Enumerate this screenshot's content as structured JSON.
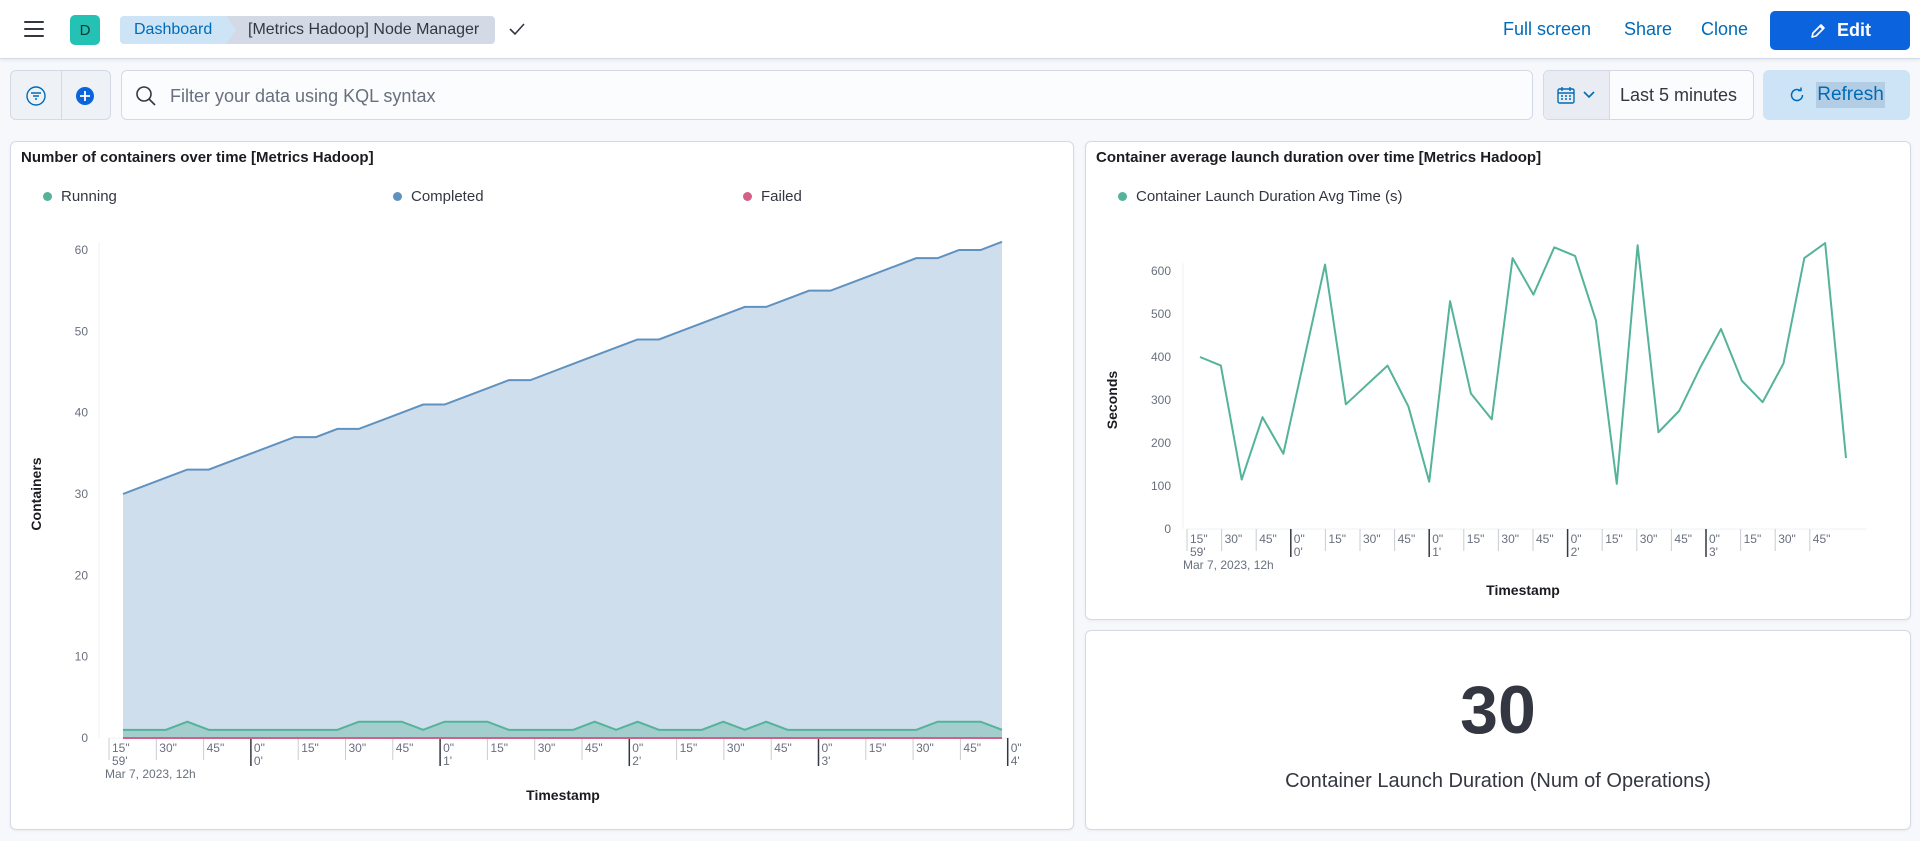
{
  "header": {
    "avatar_letter": "D",
    "breadcrumbs": [
      "Dashboard",
      "[Metrics Hadoop] Node Manager"
    ],
    "actions": {
      "fullscreen": "Full screen",
      "share": "Share",
      "clone": "Clone",
      "edit": "Edit"
    }
  },
  "query": {
    "placeholder": "Filter your data using KQL syntax",
    "time_range": "Last 5 minutes",
    "refresh": "Refresh"
  },
  "colors": {
    "running": "#54b399",
    "completed": "#6092c0",
    "failed": "#d36086",
    "accent": "#0b64dd"
  },
  "panels": {
    "containers": {
      "title": "Number of containers over time [Metrics Hadoop]"
    },
    "launch": {
      "title": "Container average launch duration over time [Metrics Hadoop]"
    },
    "metric": {
      "value": "30",
      "label": "Container Launch Duration (Num of Operations)"
    }
  },
  "chart_data": [
    {
      "type": "area",
      "ylabel": "Containers",
      "xlabel": "Timestamp",
      "ylim": [
        0,
        61
      ],
      "y_ticks": [
        0,
        10,
        20,
        30,
        40,
        50,
        60
      ],
      "x_tick_labels": [
        "15\"",
        "30\"",
        "45\"",
        "0\"",
        "15\"",
        "30\"",
        "45\"",
        "0\"",
        "15\"",
        "30\"",
        "45\"",
        "0\"",
        "15\"",
        "30\"",
        "45\"",
        "0\"",
        "15\"",
        "30\"",
        "45\"",
        "0\""
      ],
      "x_tick_sublabels": [
        "59'",
        "",
        "",
        "0'",
        "",
        "",
        "",
        "1'",
        "",
        "",
        "",
        "2'",
        "",
        "",
        "",
        "3'",
        "",
        "",
        "",
        "4'"
      ],
      "x_date_label": "Mar 7, 2023, 12h",
      "legend_position": "top",
      "series": [
        {
          "name": "Running",
          "color": "#54b399",
          "values": [
            1,
            1,
            1,
            2,
            1,
            1,
            1,
            1,
            1,
            1,
            1,
            2,
            2,
            2,
            1,
            2,
            2,
            2,
            1,
            1,
            1,
            1,
            2,
            1,
            2,
            1,
            1,
            1,
            2,
            1,
            2,
            1,
            1,
            1,
            1,
            1,
            1,
            1,
            2,
            2,
            2,
            1
          ]
        },
        {
          "name": "Completed",
          "color": "#6092c0",
          "values": [
            30,
            31,
            32,
            33,
            33,
            34,
            35,
            36,
            37,
            37,
            38,
            38,
            39,
            40,
            41,
            41,
            42,
            43,
            44,
            44,
            45,
            46,
            47,
            48,
            49,
            49,
            50,
            51,
            52,
            53,
            53,
            54,
            55,
            55,
            56,
            57,
            58,
            59,
            59,
            60,
            60,
            61
          ]
        },
        {
          "name": "Failed",
          "color": "#d36086",
          "values": [
            0,
            0,
            0,
            0,
            0,
            0,
            0,
            0,
            0,
            0,
            0,
            0,
            0,
            0,
            0,
            0,
            0,
            0,
            0,
            0,
            0,
            0,
            0,
            0,
            0,
            0,
            0,
            0,
            0,
            0,
            0,
            0,
            0,
            0,
            0,
            0,
            0,
            0,
            0,
            0,
            0,
            0
          ]
        }
      ]
    },
    {
      "type": "line",
      "ylabel": "Seconds",
      "xlabel": "Timestamp",
      "ylim": [
        0,
        670
      ],
      "y_ticks": [
        0,
        100,
        200,
        300,
        400,
        500,
        600
      ],
      "x_tick_labels": [
        "15\"",
        "30\"",
        "45\"",
        "0\"",
        "15\"",
        "30\"",
        "45\"",
        "0\"",
        "15\"",
        "30\"",
        "45\"",
        "0\"",
        "15\"",
        "30\"",
        "45\"",
        "0\"",
        "15\"",
        "30\"",
        "45\""
      ],
      "x_tick_sublabels": [
        "59'",
        "",
        "",
        "0'",
        "",
        "",
        "",
        "1'",
        "",
        "",
        "",
        "2'",
        "",
        "",
        "",
        "3'",
        "",
        "",
        ""
      ],
      "x_date_label": "Mar 7, 2023, 12h",
      "legend_position": "top",
      "series": [
        {
          "name": "Container Launch Duration Avg Time (s)",
          "color": "#54b399",
          "values": [
            400,
            380,
            115,
            260,
            175,
            395,
            615,
            290,
            335,
            380,
            285,
            110,
            530,
            315,
            255,
            630,
            545,
            655,
            635,
            485,
            105,
            660,
            225,
            275,
            375,
            465,
            345,
            295,
            385,
            630,
            665,
            165
          ]
        }
      ]
    }
  ]
}
